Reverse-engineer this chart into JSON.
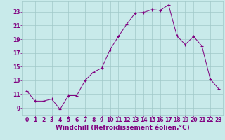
{
  "x": [
    0,
    1,
    2,
    3,
    4,
    5,
    6,
    7,
    8,
    9,
    10,
    11,
    12,
    13,
    14,
    15,
    16,
    17,
    18,
    19,
    20,
    21,
    22,
    23
  ],
  "y": [
    11.5,
    10.0,
    10.0,
    10.3,
    8.8,
    10.8,
    10.8,
    13.0,
    14.2,
    14.8,
    17.5,
    19.4,
    21.2,
    22.8,
    22.9,
    23.3,
    23.2,
    24.0,
    19.5,
    18.2,
    19.4,
    18.0,
    13.2,
    11.8
  ],
  "line_color": "#800080",
  "marker": "+",
  "marker_size": 3.0,
  "background_color": "#c8eaea",
  "grid_color": "#a0c8c8",
  "xlabel": "Windchill (Refroidissement éolien,°C)",
  "xlabel_color": "#800080",
  "xlabel_fontsize": 6.5,
  "tick_color": "#800080",
  "tick_fontsize": 5.5,
  "ylim": [
    8.0,
    24.5
  ],
  "xlim": [
    -0.5,
    23.5
  ],
  "yticks": [
    9,
    11,
    13,
    15,
    17,
    19,
    21,
    23
  ],
  "xticks": [
    0,
    1,
    2,
    3,
    4,
    5,
    6,
    7,
    8,
    9,
    10,
    11,
    12,
    13,
    14,
    15,
    16,
    17,
    18,
    19,
    20,
    21,
    22,
    23
  ]
}
